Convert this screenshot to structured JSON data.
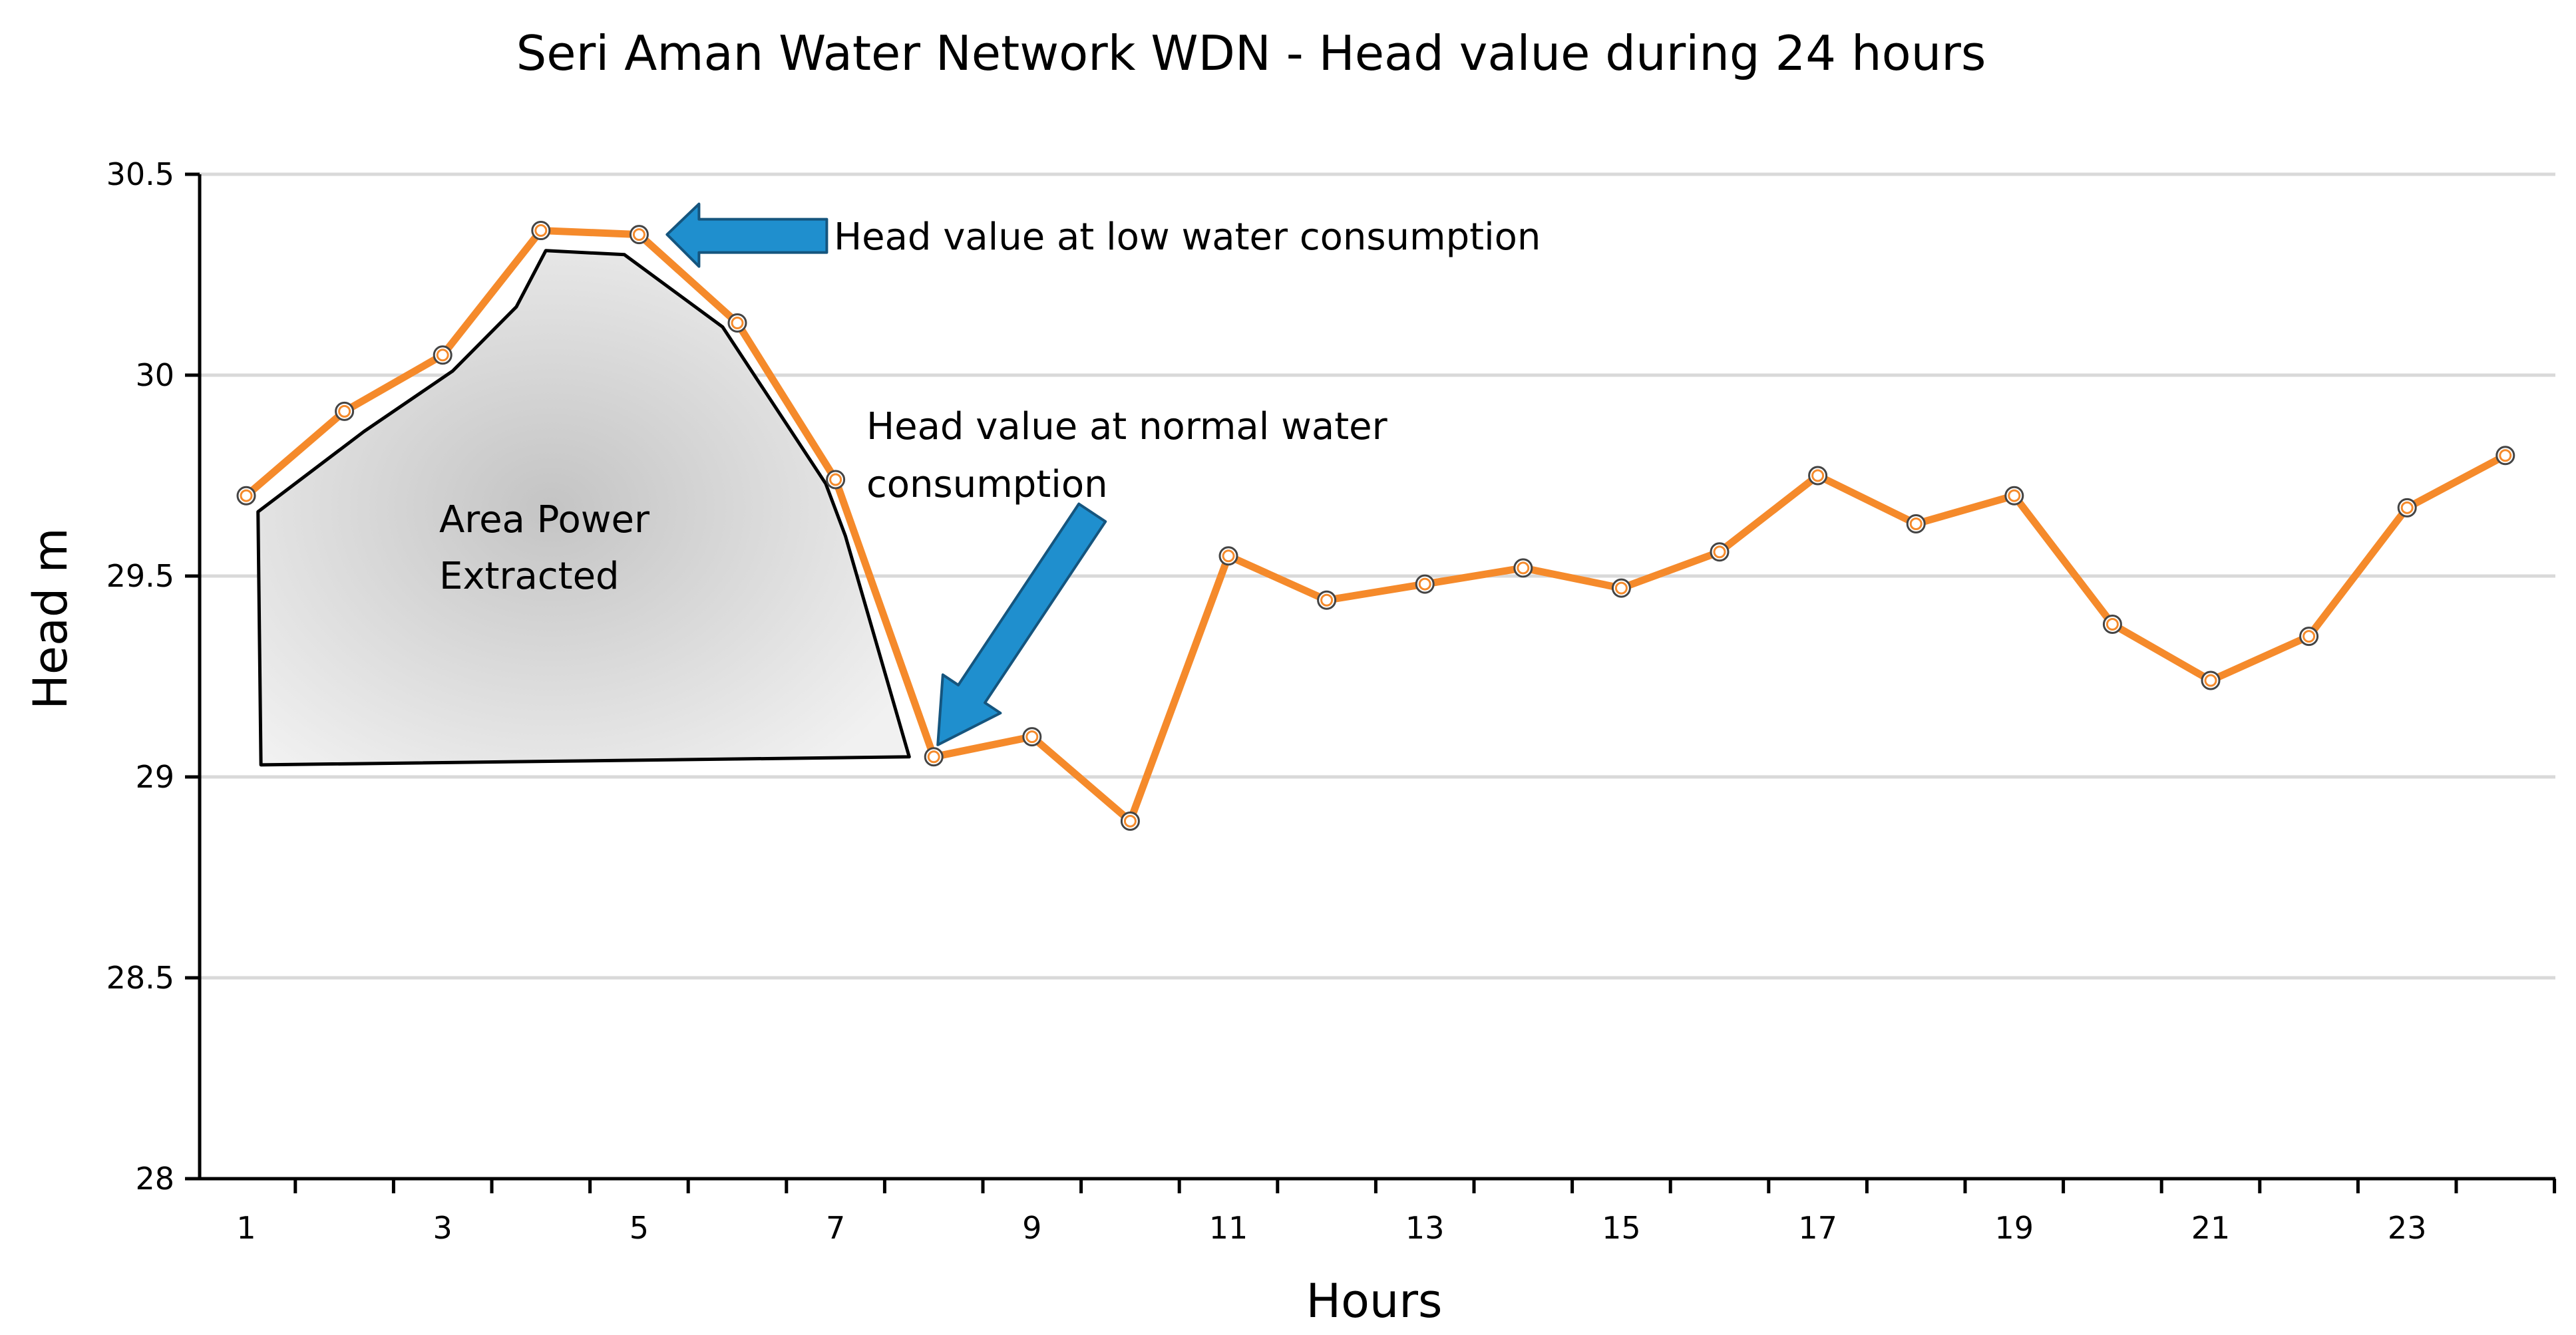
{
  "chart_data": {
    "type": "line",
    "title": "Seri Aman Water Network WDN - Head value during 24 hours",
    "xlabel": "Hours",
    "ylabel": "Head m",
    "ylim": [
      28,
      30.5
    ],
    "yticks": [
      28,
      28.5,
      29,
      29.5,
      30,
      30.5
    ],
    "ytick_labels": [
      "28",
      "28.5",
      "29",
      "29.5",
      "30",
      "30.5"
    ],
    "xtick_labels": [
      "1",
      "3",
      "5",
      "7",
      "9",
      "11",
      "13",
      "15",
      "17",
      "19",
      "21",
      "23"
    ],
    "grid": true,
    "legend": "none",
    "series": [
      {
        "name": "Head",
        "color": "#f58a2b",
        "marker": "open-circle",
        "x": [
          1,
          2,
          3,
          4,
          5,
          6,
          7,
          8,
          9,
          10,
          11,
          12,
          13,
          14,
          15,
          16,
          17,
          18,
          19,
          20,
          21,
          22,
          23,
          24
        ],
        "values": [
          29.7,
          29.91,
          30.05,
          30.36,
          30.35,
          30.13,
          29.74,
          29.05,
          29.1,
          28.89,
          29.55,
          29.44,
          29.48,
          29.52,
          29.47,
          29.56,
          29.75,
          29.63,
          29.7,
          29.38,
          29.24,
          29.35,
          29.67,
          29.8
        ]
      }
    ],
    "region": {
      "label_lines": [
        "Area Power",
        "Extracted"
      ],
      "fill": "#d0d0d0",
      "outline": "#000000",
      "boundary": [
        {
          "x": 1.12,
          "y": 29.66
        },
        {
          "x": 2.2,
          "y": 29.86
        },
        {
          "x": 3.1,
          "y": 30.01
        },
        {
          "x": 3.75,
          "y": 30.17
        },
        {
          "x": 4.05,
          "y": 30.31
        },
        {
          "x": 4.85,
          "y": 30.3
        },
        {
          "x": 5.85,
          "y": 30.12
        },
        {
          "x": 6.9,
          "y": 29.73
        },
        {
          "x": 7.1,
          "y": 29.6
        },
        {
          "x": 7.75,
          "y": 29.05
        },
        {
          "x": 1.15,
          "y": 29.03
        }
      ]
    },
    "annotations": [
      {
        "text_lines": [
          "Head value at low water consumption"
        ],
        "points_to": {
          "x": 5,
          "y": 30.35
        },
        "arrow_color": "#1f8fce"
      },
      {
        "text_lines": [
          "Head value at normal water",
          "consumption"
        ],
        "points_to": {
          "x": 8,
          "y": 29.05
        },
        "arrow_color": "#1f8fce"
      }
    ]
  }
}
